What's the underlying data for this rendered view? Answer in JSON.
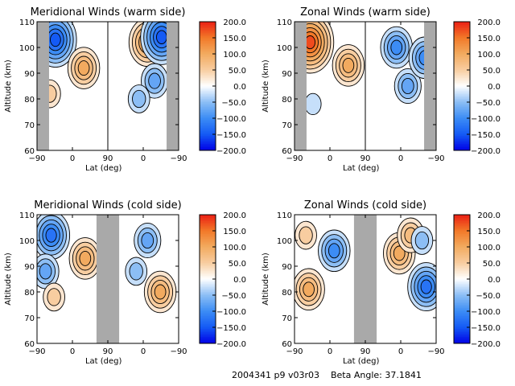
{
  "footer": {
    "text": "2004341 p9 v03r03    Beta Angle: 37.1841"
  },
  "colorbar": {
    "ticks": [
      "200.0",
      "150.0",
      "100.0",
      "50.0",
      "0.0",
      "−50.0",
      "−100.0",
      "−150.0",
      "−200.0"
    ],
    "range": [
      -200,
      200
    ]
  },
  "chart_data": [
    {
      "type": "heatmap",
      "title": "Meridional Winds (warm side)",
      "xlabel": "Lat (deg)",
      "ylabel": "Altitude (km)",
      "xticks": [
        "−90",
        "0",
        "90",
        "0",
        "−90"
      ],
      "yticks": [
        "110",
        "100",
        "90",
        "80",
        "70",
        "60"
      ],
      "ylim": [
        60,
        110
      ],
      "gap_column": "left",
      "features": [
        {
          "lat_pos": 0.13,
          "alt": 103,
          "value": -160
        },
        {
          "lat_pos": 0.09,
          "alt": 82,
          "value": 60
        },
        {
          "lat_pos": 0.33,
          "alt": 92,
          "value": 110
        },
        {
          "lat_pos": 0.78,
          "alt": 102,
          "value": 120
        },
        {
          "lat_pos": 0.88,
          "alt": 104,
          "value": -150
        },
        {
          "lat_pos": 0.83,
          "alt": 87,
          "value": -70
        },
        {
          "lat_pos": 0.72,
          "alt": 80,
          "value": -40
        }
      ]
    },
    {
      "type": "heatmap",
      "title": "Zonal Winds (warm side)",
      "xlabel": "Lat (deg)",
      "ylabel": "Altitude (km)",
      "xticks": [
        "−90",
        "0",
        "90",
        "0",
        "−90"
      ],
      "yticks": [
        "110",
        "100",
        "90",
        "80",
        "70",
        "60"
      ],
      "ylim": [
        60,
        110
      ],
      "gap_column": "left",
      "features": [
        {
          "lat_pos": 0.11,
          "alt": 102,
          "value": 170
        },
        {
          "lat_pos": 0.38,
          "alt": 93,
          "value": 110
        },
        {
          "lat_pos": 0.72,
          "alt": 100,
          "value": -90
        },
        {
          "lat_pos": 0.8,
          "alt": 85,
          "value": -70
        },
        {
          "lat_pos": 0.92,
          "alt": 96,
          "value": -100
        },
        {
          "lat_pos": 0.13,
          "alt": 78,
          "value": -30
        }
      ]
    },
    {
      "type": "heatmap",
      "title": "Meridional Winds (cold side)",
      "xlabel": "Lat (deg)",
      "ylabel": "Altitude (km)",
      "xticks": [
        "−90",
        "0",
        "90",
        "0",
        "−90"
      ],
      "yticks": [
        "110",
        "100",
        "90",
        "80",
        "70",
        "60"
      ],
      "ylim": [
        60,
        110
      ],
      "gap_column": "center",
      "features": [
        {
          "lat_pos": 0.1,
          "alt": 102,
          "value": -120
        },
        {
          "lat_pos": 0.06,
          "alt": 88,
          "value": -80
        },
        {
          "lat_pos": 0.12,
          "alt": 78,
          "value": 50
        },
        {
          "lat_pos": 0.34,
          "alt": 93,
          "value": 90
        },
        {
          "lat_pos": 0.78,
          "alt": 100,
          "value": -70
        },
        {
          "lat_pos": 0.87,
          "alt": 80,
          "value": 100
        },
        {
          "lat_pos": 0.7,
          "alt": 88,
          "value": -40
        }
      ]
    },
    {
      "type": "heatmap",
      "title": "Zonal Winds (cold side)",
      "xlabel": "Lat (deg)",
      "ylabel": "Altitude (km)",
      "xticks": [
        "−90",
        "0",
        "90",
        "0",
        "−90"
      ],
      "yticks": [
        "110",
        "100",
        "90",
        "80",
        "70",
        "60"
      ],
      "ylim": [
        60,
        110
      ],
      "gap_column": "center",
      "features": [
        {
          "lat_pos": 0.1,
          "alt": 81,
          "value": 110
        },
        {
          "lat_pos": 0.08,
          "alt": 102,
          "value": 60
        },
        {
          "lat_pos": 0.28,
          "alt": 96,
          "value": -90
        },
        {
          "lat_pos": 0.74,
          "alt": 95,
          "value": 90
        },
        {
          "lat_pos": 0.82,
          "alt": 102,
          "value": 70
        },
        {
          "lat_pos": 0.93,
          "alt": 82,
          "value": -130
        },
        {
          "lat_pos": 0.9,
          "alt": 100,
          "value": -60
        }
      ]
    }
  ]
}
